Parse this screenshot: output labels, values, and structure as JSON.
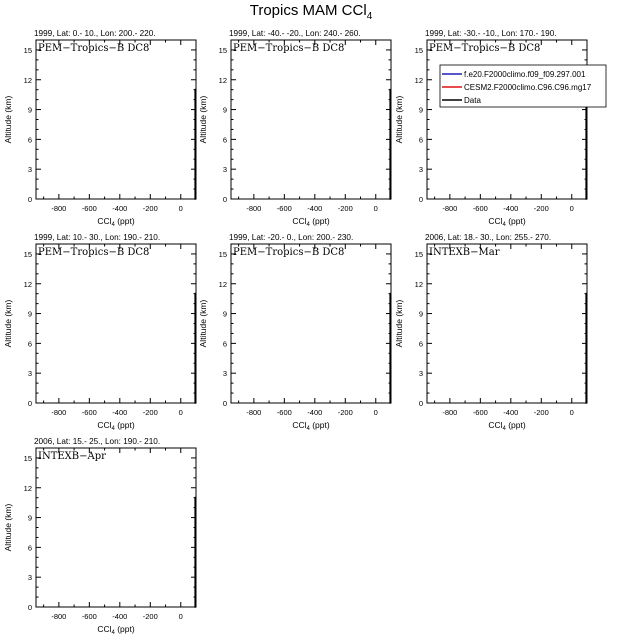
{
  "figure": {
    "title_main": "Tropics MAM CCl",
    "title_sub": "4"
  },
  "chart_data": [
    {
      "type": "line",
      "header": "1999, Lat: 0.- 10., Lon: 200.- 220.",
      "campaign": "PEM−Tropics−B DC8",
      "xlabel_main": "CCl",
      "xlabel_sub": "4",
      "xlabel_unit": " (ppt)",
      "ylabel": "Altitude (km)",
      "xlim": [
        -950,
        100
      ],
      "ylim": [
        0,
        16
      ],
      "xticks": [
        -800,
        -600,
        -400,
        -200,
        0
      ],
      "yticks": [
        0,
        3,
        6,
        9,
        12,
        15
      ],
      "series": [
        {
          "color": "#000000",
          "x": [
            95,
            95,
            95
          ],
          "y": [
            0,
            8,
            11
          ]
        }
      ]
    },
    {
      "type": "line",
      "header": "1999, Lat: -40.- -20., Lon: 240.- 260.",
      "campaign": "PEM−Tropics−B DC8",
      "xlabel_main": "CCl",
      "xlabel_sub": "4",
      "xlabel_unit": " (ppt)",
      "ylabel": "Altitude (km)",
      "xlim": [
        -950,
        100
      ],
      "ylim": [
        0,
        16
      ],
      "xticks": [
        -800,
        -600,
        -400,
        -200,
        0
      ],
      "yticks": [
        0,
        3,
        6,
        9,
        12,
        15
      ],
      "series": [
        {
          "color": "#000000",
          "x": [
            95,
            95
          ],
          "y": [
            0,
            11
          ]
        }
      ]
    },
    {
      "type": "line",
      "header": "1999, Lat: -30.- -10., Lon: 170.- 190.",
      "campaign": "PEM−Tropics−B DC8",
      "xlabel_main": "CCl",
      "xlabel_sub": "4",
      "xlabel_unit": " (ppt)",
      "ylabel": "Altitude (km)",
      "xlim": [
        -950,
        100
      ],
      "ylim": [
        0,
        16
      ],
      "xticks": [
        -800,
        -600,
        -400,
        -200,
        0
      ],
      "yticks": [
        0,
        3,
        6,
        9,
        12,
        15
      ],
      "legend": [
        {
          "label": "f.e20.F2000climo.f09_f09.297.001",
          "color": "#1f1fbf"
        },
        {
          "label": "CESM2.F2000climo.C96.C96.mg17",
          "color": "#e01010"
        },
        {
          "label": "Data",
          "color": "#000000"
        }
      ],
      "series": [
        {
          "color": "#000000",
          "x": [
            95,
            95,
            95
          ],
          "y": [
            0,
            3,
            11
          ]
        }
      ]
    },
    {
      "type": "line",
      "header": "1999, Lat: 10.- 30., Lon: 190.- 210.",
      "campaign": "PEM−Tropics−B DC8",
      "xlabel_main": "CCl",
      "xlabel_sub": "4",
      "xlabel_unit": " (ppt)",
      "ylabel": "Altitude (km)",
      "xlim": [
        -950,
        100
      ],
      "ylim": [
        0,
        16
      ],
      "xticks": [
        -800,
        -600,
        -400,
        -200,
        0
      ],
      "yticks": [
        0,
        3,
        6,
        9,
        12,
        15
      ],
      "series": [
        {
          "color": "#000000",
          "x": [
            95,
            95,
            95
          ],
          "y": [
            0,
            6,
            11
          ]
        }
      ]
    },
    {
      "type": "line",
      "header": "1999, Lat: -20.- 0., Lon: 200.- 230.",
      "campaign": "PEM−Tropics−B DC8",
      "xlabel_main": "CCl",
      "xlabel_sub": "4",
      "xlabel_unit": " (ppt)",
      "ylabel": "Altitude (km)",
      "xlim": [
        -950,
        100
      ],
      "ylim": [
        0,
        16
      ],
      "xticks": [
        -800,
        -600,
        -400,
        -200,
        0
      ],
      "yticks": [
        0,
        3,
        6,
        9,
        12,
        15
      ],
      "series": [
        {
          "color": "#000000",
          "x": [
            95,
            95
          ],
          "y": [
            0,
            11
          ]
        }
      ]
    },
    {
      "type": "line",
      "header": "2006, Lat: 18.- 30., Lon: 255.- 270.",
      "campaign": "INTEXB−Mar",
      "xlabel_main": "CCl",
      "xlabel_sub": "4",
      "xlabel_unit": " (ppt)",
      "ylabel": "Altitude (km)",
      "xlim": [
        -950,
        100
      ],
      "ylim": [
        0,
        16
      ],
      "xticks": [
        -800,
        -600,
        -400,
        -200,
        0
      ],
      "yticks": [
        0,
        3,
        6,
        9,
        12,
        15
      ],
      "series": [
        {
          "color": "#000000",
          "x": [
            95,
            95,
            95
          ],
          "y": [
            0,
            3,
            11
          ]
        }
      ]
    },
    {
      "type": "line",
      "header": "2006, Lat: 15.- 25., Lon: 190.- 210.",
      "campaign": "INTEXB−Apr",
      "xlabel_main": "CCl",
      "xlabel_sub": "4",
      "xlabel_unit": " (ppt)",
      "ylabel": "Altitude (km)",
      "xlim": [
        -950,
        100
      ],
      "ylim": [
        0,
        16
      ],
      "xticks": [
        -800,
        -600,
        -400,
        -200,
        0
      ],
      "yticks": [
        0,
        3,
        6,
        9,
        12,
        15
      ],
      "series": [
        {
          "color": "#000000",
          "x": [
            95,
            95,
            95
          ],
          "y": [
            0,
            7,
            11
          ]
        }
      ]
    }
  ]
}
